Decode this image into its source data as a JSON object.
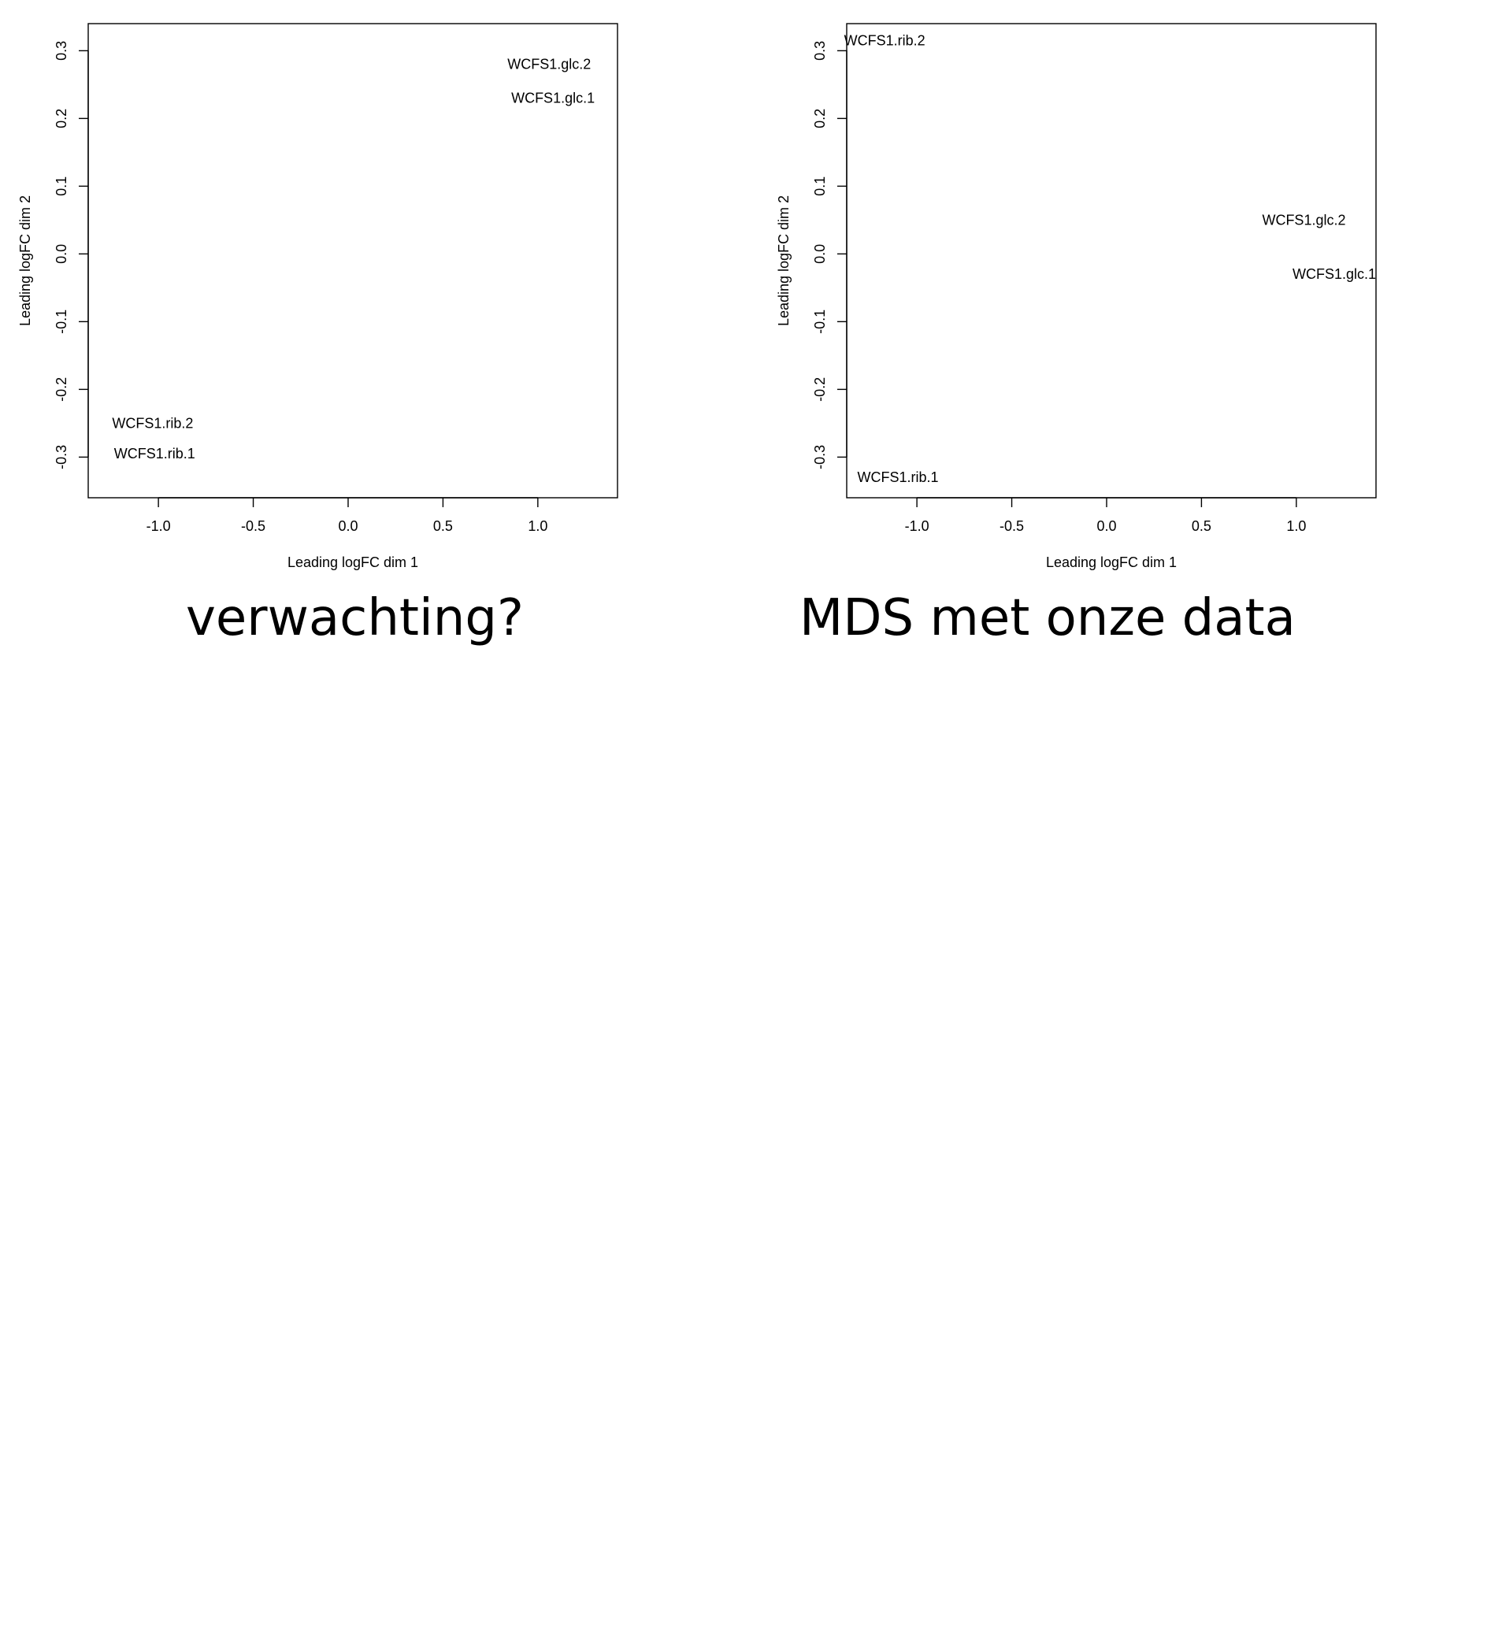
{
  "chart_data": [
    {
      "type": "scatter",
      "title": "",
      "xlabel": "Leading logFC dim 1",
      "ylabel": "Leading logFC dim 2",
      "xlim": [
        -1.37,
        1.42
      ],
      "ylim": [
        -0.36,
        0.34
      ],
      "xticks": [
        -1.0,
        -0.5,
        0.0,
        0.5,
        1.0
      ],
      "xtick_labels": [
        "-1.0",
        "-0.5",
        "0.0",
        "0.5",
        "1.0"
      ],
      "yticks": [
        -0.3,
        -0.2,
        -0.1,
        0.0,
        0.1,
        0.2,
        0.3
      ],
      "ytick_labels": [
        "-0.3",
        "-0.2",
        "-0.1",
        "0.0",
        "0.1",
        "0.2",
        "0.3"
      ],
      "grid": false,
      "points": [
        {
          "label": "WCFS1.glc.2",
          "x": 1.06,
          "y": 0.28
        },
        {
          "label": "WCFS1.glc.1",
          "x": 1.08,
          "y": 0.23
        },
        {
          "label": "WCFS1.rib.2",
          "x": -1.03,
          "y": -0.25
        },
        {
          "label": "WCFS1.rib.1",
          "x": -1.02,
          "y": -0.295
        }
      ],
      "caption": "verwachting?"
    },
    {
      "type": "scatter",
      "title": "",
      "xlabel": "Leading logFC dim 1",
      "ylabel": "Leading logFC dim 2",
      "xlim": [
        -1.37,
        1.42
      ],
      "ylim": [
        -0.36,
        0.34
      ],
      "xticks": [
        -1.0,
        -0.5,
        0.0,
        0.5,
        1.0
      ],
      "xtick_labels": [
        "-1.0",
        "-0.5",
        "0.0",
        "0.5",
        "1.0"
      ],
      "yticks": [
        -0.3,
        -0.2,
        -0.1,
        0.0,
        0.1,
        0.2,
        0.3
      ],
      "ytick_labels": [
        "-0.3",
        "-0.2",
        "-0.1",
        "0.0",
        "0.1",
        "0.2",
        "0.3"
      ],
      "grid": false,
      "points": [
        {
          "label": "WCFS1.rib.2",
          "x": -1.17,
          "y": 0.315
        },
        {
          "label": "WCFS1.glc.2",
          "x": 1.04,
          "y": 0.05
        },
        {
          "label": "WCFS1.glc.1",
          "x": 1.2,
          "y": -0.03
        },
        {
          "label": "WCFS1.rib.1",
          "x": -1.1,
          "y": -0.33
        }
      ],
      "caption": "MDS met onze data"
    }
  ]
}
